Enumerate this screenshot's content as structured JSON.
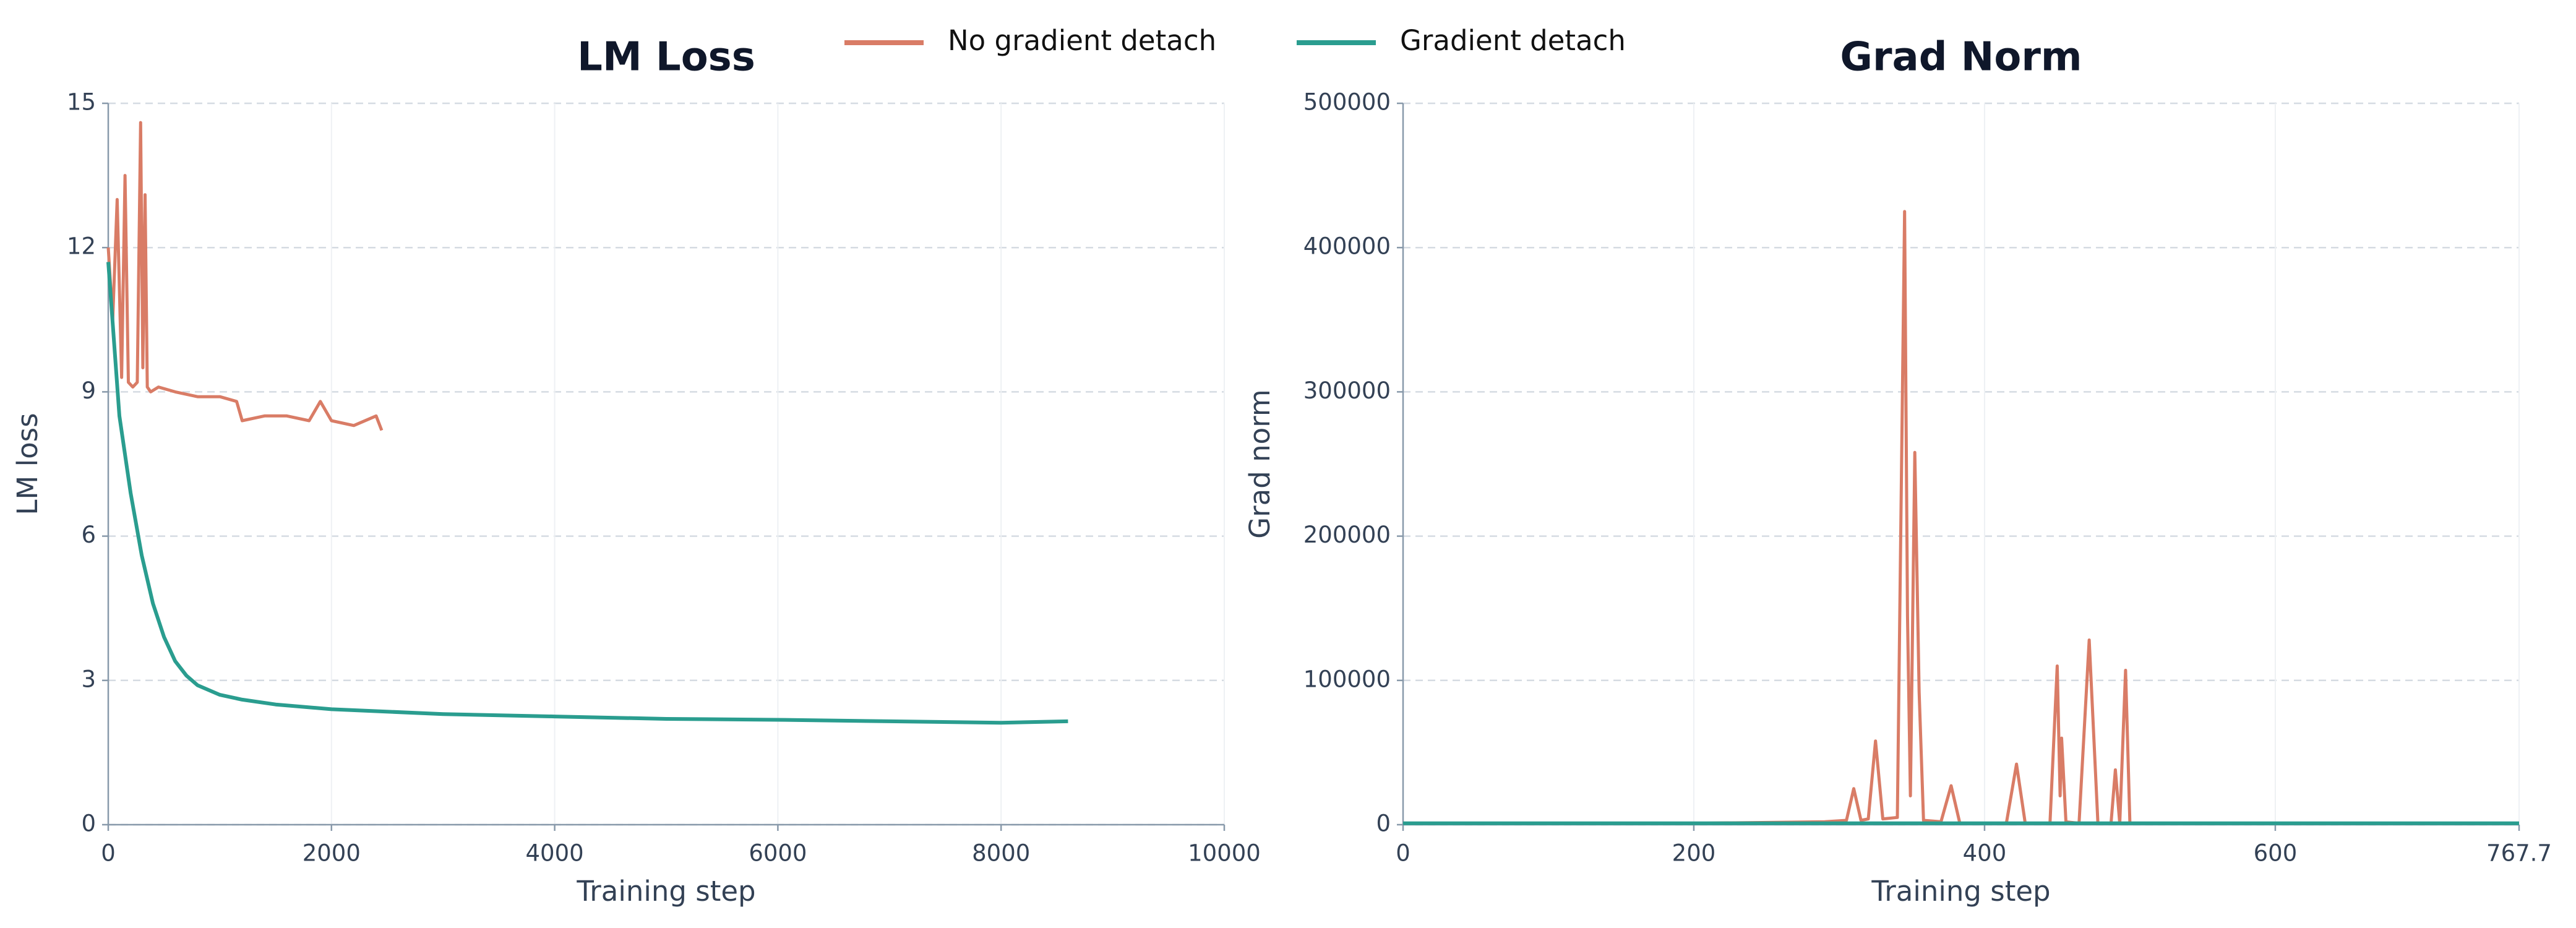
{
  "chart_data": [
    {
      "type": "line",
      "title": "LM Loss",
      "x_label": "Training step",
      "y_label": "LM loss",
      "xlim": [
        0,
        10000
      ],
      "xticks": [
        0,
        2000,
        4000,
        6000,
        8000,
        10000
      ],
      "ylim": [
        0,
        15
      ],
      "yticks": [
        0,
        3,
        6,
        9,
        12,
        15
      ],
      "grid": true,
      "series": [
        {
          "name": "No gradient detach",
          "color": "#d97c66",
          "x": [
            0,
            40,
            80,
            120,
            150,
            180,
            220,
            260,
            290,
            310,
            330,
            350,
            380,
            450,
            600,
            800,
            1000,
            1150,
            1200,
            1400,
            1600,
            1800,
            1900,
            2000,
            2200,
            2400,
            2450
          ],
          "values": [
            12.0,
            10.5,
            13.0,
            9.3,
            13.5,
            9.2,
            9.1,
            9.2,
            14.6,
            9.5,
            13.1,
            9.1,
            9.0,
            9.1,
            9.0,
            8.9,
            8.9,
            8.8,
            8.4,
            8.5,
            8.5,
            8.4,
            8.8,
            8.4,
            8.3,
            8.5,
            8.2
          ]
        },
        {
          "name": "Gradient detach",
          "color": "#2a9d8f",
          "x": [
            0,
            100,
            200,
            300,
            400,
            500,
            600,
            700,
            800,
            1000,
            1200,
            1500,
            2000,
            3000,
            4000,
            5000,
            6000,
            7000,
            8000,
            8600
          ],
          "values": [
            11.7,
            8.5,
            6.9,
            5.6,
            4.6,
            3.9,
            3.4,
            3.1,
            2.9,
            2.7,
            2.6,
            2.5,
            2.4,
            2.3,
            2.25,
            2.2,
            2.18,
            2.15,
            2.12,
            2.15
          ]
        }
      ]
    },
    {
      "type": "line",
      "title": "Grad Norm",
      "x_label": "Training step",
      "y_label": "Grad norm",
      "xlim": [
        0,
        767.7
      ],
      "xticks": [
        0,
        200,
        400,
        600,
        767.7
      ],
      "ylim": [
        0,
        500000
      ],
      "yticks": [
        0,
        100000,
        200000,
        300000,
        400000,
        500000
      ],
      "grid": true,
      "series": [
        {
          "name": "No gradient detach",
          "color": "#d97c66",
          "x": [
            0,
            100,
            200,
            290,
            305,
            310,
            315,
            320,
            325,
            330,
            340,
            345,
            347,
            349,
            352,
            355,
            358,
            370,
            377,
            383,
            415,
            422,
            428,
            445,
            450,
            452,
            453,
            456,
            465,
            472,
            478,
            487,
            490,
            493,
            497,
            500
          ],
          "values": [
            1000,
            1000,
            1000,
            2000,
            3000,
            25000,
            3000,
            4000,
            58000,
            4000,
            5000,
            425000,
            145000,
            20000,
            258000,
            92000,
            3000,
            2000,
            27000,
            1000,
            1000,
            42000,
            1000,
            1000,
            110000,
            20000,
            60000,
            2000,
            1000,
            128000,
            1000,
            1000,
            38000,
            1000,
            107000,
            1000
          ]
        },
        {
          "name": "Gradient detach",
          "color": "#2a9d8f",
          "x": [
            0,
            100,
            200,
            300,
            400,
            500,
            600,
            700,
            767.7
          ],
          "values": [
            1000,
            1000,
            1000,
            1000,
            1000,
            1000,
            1000,
            1000,
            1000
          ]
        }
      ]
    }
  ]
}
